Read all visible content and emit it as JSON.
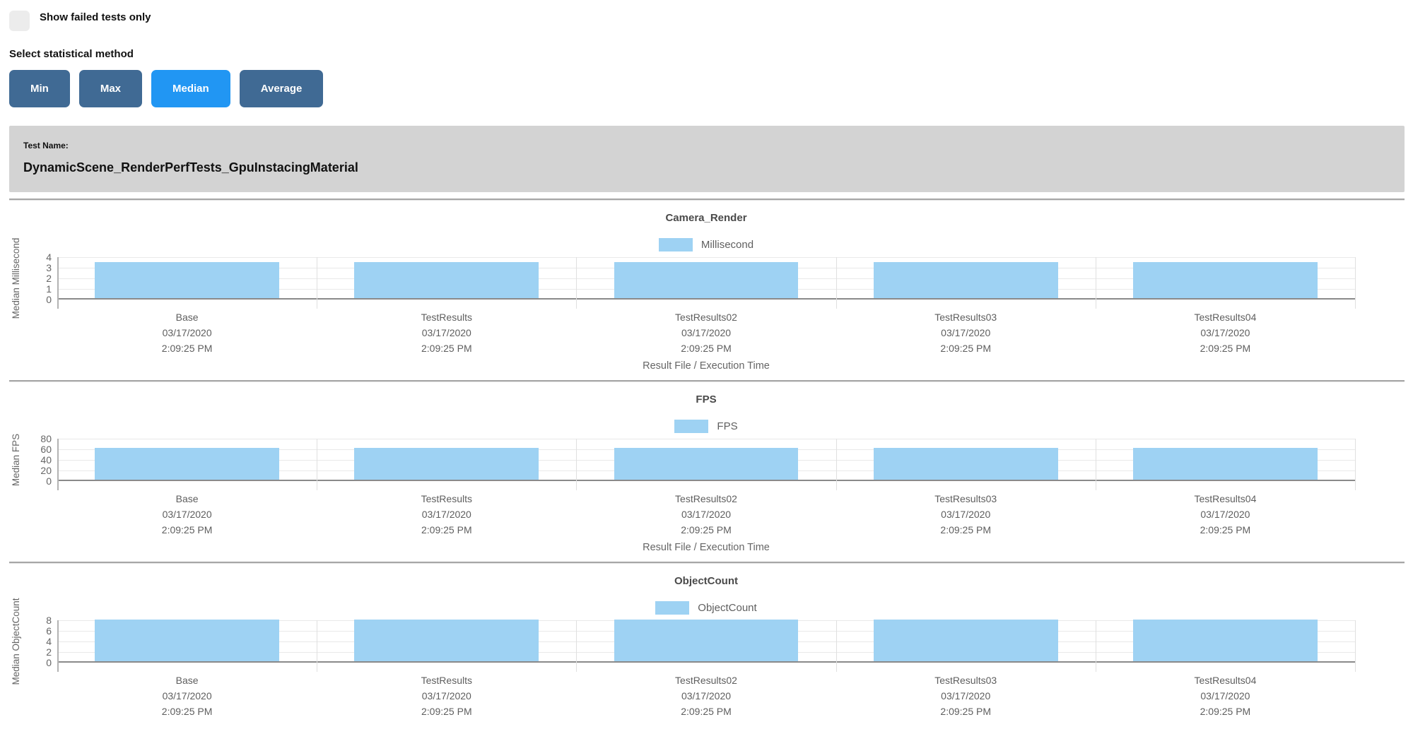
{
  "colors": {
    "bar_fill": "#9ED2F3",
    "button_inactive": "#406A94",
    "button_active": "#2196F3",
    "panel_bg": "#D3D3D3"
  },
  "filters": {
    "show_failed_label": "Show failed tests only",
    "stat_method_label": "Select statistical method",
    "stat_buttons": [
      {
        "label": "Min",
        "active": false
      },
      {
        "label": "Max",
        "active": false
      },
      {
        "label": "Median",
        "active": true
      },
      {
        "label": "Average",
        "active": false
      }
    ]
  },
  "test_header": {
    "label": "Test Name:",
    "name": "DynamicScene_RenderPerfTests_GpuInstacingMaterial"
  },
  "chart_data": [
    {
      "type": "bar",
      "title": "Camera_Render",
      "legend": "Millisecond",
      "ylabel": "Median Millisecond",
      "xlabel": "Result File / Execution Time",
      "ylim": [
        0,
        4
      ],
      "yticks": [
        4,
        3,
        2,
        1,
        0
      ],
      "grid": true,
      "legend_position": "top",
      "categories": [
        {
          "name": "Base",
          "date": "03/17/2020",
          "time": "2:09:25 PM"
        },
        {
          "name": "TestResults",
          "date": "03/17/2020",
          "time": "2:09:25 PM"
        },
        {
          "name": "TestResults02",
          "date": "03/17/2020",
          "time": "2:09:25 PM"
        },
        {
          "name": "TestResults03",
          "date": "03/17/2020",
          "time": "2:09:25 PM"
        },
        {
          "name": "TestResults04",
          "date": "03/17/2020",
          "time": "2:09:25 PM"
        }
      ],
      "values": [
        3.4,
        3.4,
        3.4,
        3.4,
        3.4
      ]
    },
    {
      "type": "bar",
      "title": "FPS",
      "legend": "FPS",
      "ylabel": "Median FPS",
      "xlabel": "Result File / Execution Time",
      "ylim": [
        0,
        80
      ],
      "yticks": [
        80,
        60,
        40,
        20,
        0
      ],
      "grid": true,
      "legend_position": "top",
      "categories": [
        {
          "name": "Base",
          "date": "03/17/2020",
          "time": "2:09:25 PM"
        },
        {
          "name": "TestResults",
          "date": "03/17/2020",
          "time": "2:09:25 PM"
        },
        {
          "name": "TestResults02",
          "date": "03/17/2020",
          "time": "2:09:25 PM"
        },
        {
          "name": "TestResults03",
          "date": "03/17/2020",
          "time": "2:09:25 PM"
        },
        {
          "name": "TestResults04",
          "date": "03/17/2020",
          "time": "2:09:25 PM"
        }
      ],
      "values": [
        59.5,
        59.5,
        59.5,
        59.5,
        59.5
      ]
    },
    {
      "type": "bar",
      "title": "ObjectCount",
      "legend": "ObjectCount",
      "ylabel": "Median ObjectCount",
      "xlabel": "",
      "ylim": [
        0,
        8
      ],
      "yticks": [
        8,
        6,
        4,
        2,
        0
      ],
      "grid": true,
      "legend_position": "top",
      "categories": [
        {
          "name": "Base",
          "date": "03/17/2020",
          "time": "2:09:25 PM"
        },
        {
          "name": "TestResults",
          "date": "03/17/2020",
          "time": "2:09:25 PM"
        },
        {
          "name": "TestResults02",
          "date": "03/17/2020",
          "time": "2:09:25 PM"
        },
        {
          "name": "TestResults03",
          "date": "03/17/2020",
          "time": "2:09:25 PM"
        },
        {
          "name": "TestResults04",
          "date": "03/17/2020",
          "time": "2:09:25 PM"
        }
      ],
      "values": [
        7.9,
        7.9,
        7.9,
        7.9,
        7.9
      ]
    }
  ]
}
